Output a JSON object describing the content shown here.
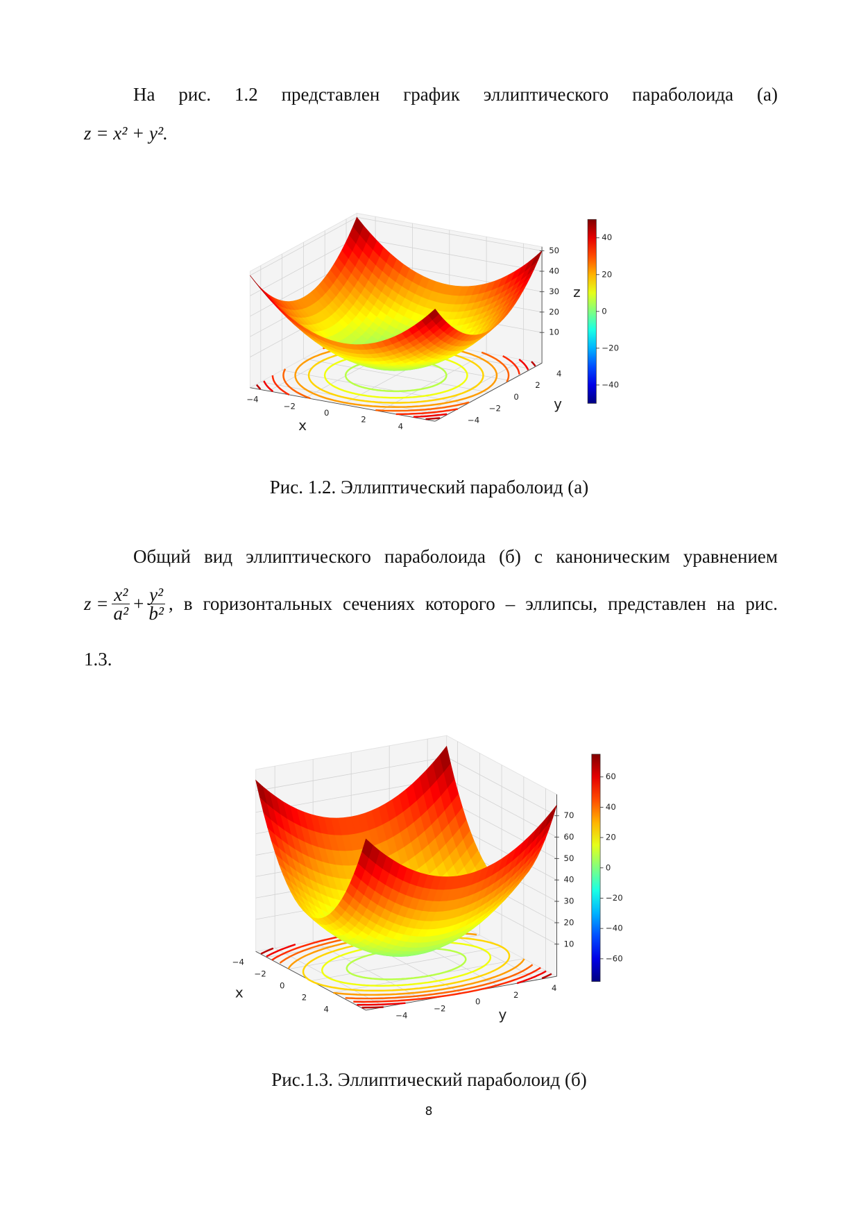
{
  "paragraph_1": {
    "text": "На рис. 1.2 представлен график эллиптического параболоида (а)",
    "formula": "z = x² + y²."
  },
  "figure_1": {
    "plot": {
      "xlabel": "x",
      "ylabel": "y",
      "zlabel": "z",
      "xlim": [
        -5,
        5
      ],
      "ylim": [
        -5,
        5
      ],
      "zlim": [
        -5,
        52
      ],
      "xticks": [
        {
          "value": -4,
          "label": "−4"
        },
        {
          "value": -2,
          "label": "−2"
        },
        0,
        2,
        4
      ],
      "yticks": [
        {
          "value": -4,
          "label": "−4"
        },
        {
          "value": -2,
          "label": "−2"
        },
        0,
        2,
        4
      ],
      "zticks": [
        10,
        20,
        30,
        40,
        50
      ],
      "colorbar": {
        "lim": [
          -50,
          50
        ],
        "ticks": [
          {
            "value": -40,
            "label": "−40"
          },
          {
            "value": -20,
            "label": "−20"
          },
          0,
          20,
          40
        ]
      }
    },
    "caption": "Рис. 1.2. Эллиптический параболоид (а)"
  },
  "paragraph_2": {
    "text": "Общий вид эллиптического параболоида (б) с каноническим уравнением",
    "formula": {
      "lhs": "z =",
      "fraction_1": {
        "numerator": "x²",
        "denominator": "a²"
      },
      "operator": "+",
      "fraction_2": {
        "numerator": "y²",
        "denominator": "b²"
      }
    },
    "continuation": ", в горизонтальных сечениях которого – эллипсы, представлен на рис.",
    "last_line": "1.3."
  },
  "figure_2": {
    "plot": {
      "xlabel": "x",
      "ylabel": "y",
      "xlim": [
        -5,
        5
      ],
      "ylim": [
        -5,
        5
      ],
      "zlim": [
        -5,
        80
      ],
      "xticks": [
        {
          "value": -4,
          "label": "−4"
        },
        {
          "value": -2,
          "label": "−2"
        },
        0,
        2,
        4
      ],
      "yticks": [
        {
          "value": -4,
          "label": "−4"
        },
        {
          "value": -2,
          "label": "−2"
        },
        0,
        2,
        4
      ],
      "zticks": [
        10,
        20,
        30,
        40,
        50,
        60,
        70
      ],
      "colorbar": {
        "lim": [
          -75,
          75
        ],
        "ticks": [
          {
            "value": -60,
            "label": "−60"
          },
          {
            "value": -40,
            "label": "−40"
          },
          {
            "value": -20,
            "label": "−20"
          },
          0,
          20,
          40,
          60
        ]
      }
    },
    "caption": "Рис.1.3. Эллиптический параболоид (б)"
  },
  "page_number": "8"
}
